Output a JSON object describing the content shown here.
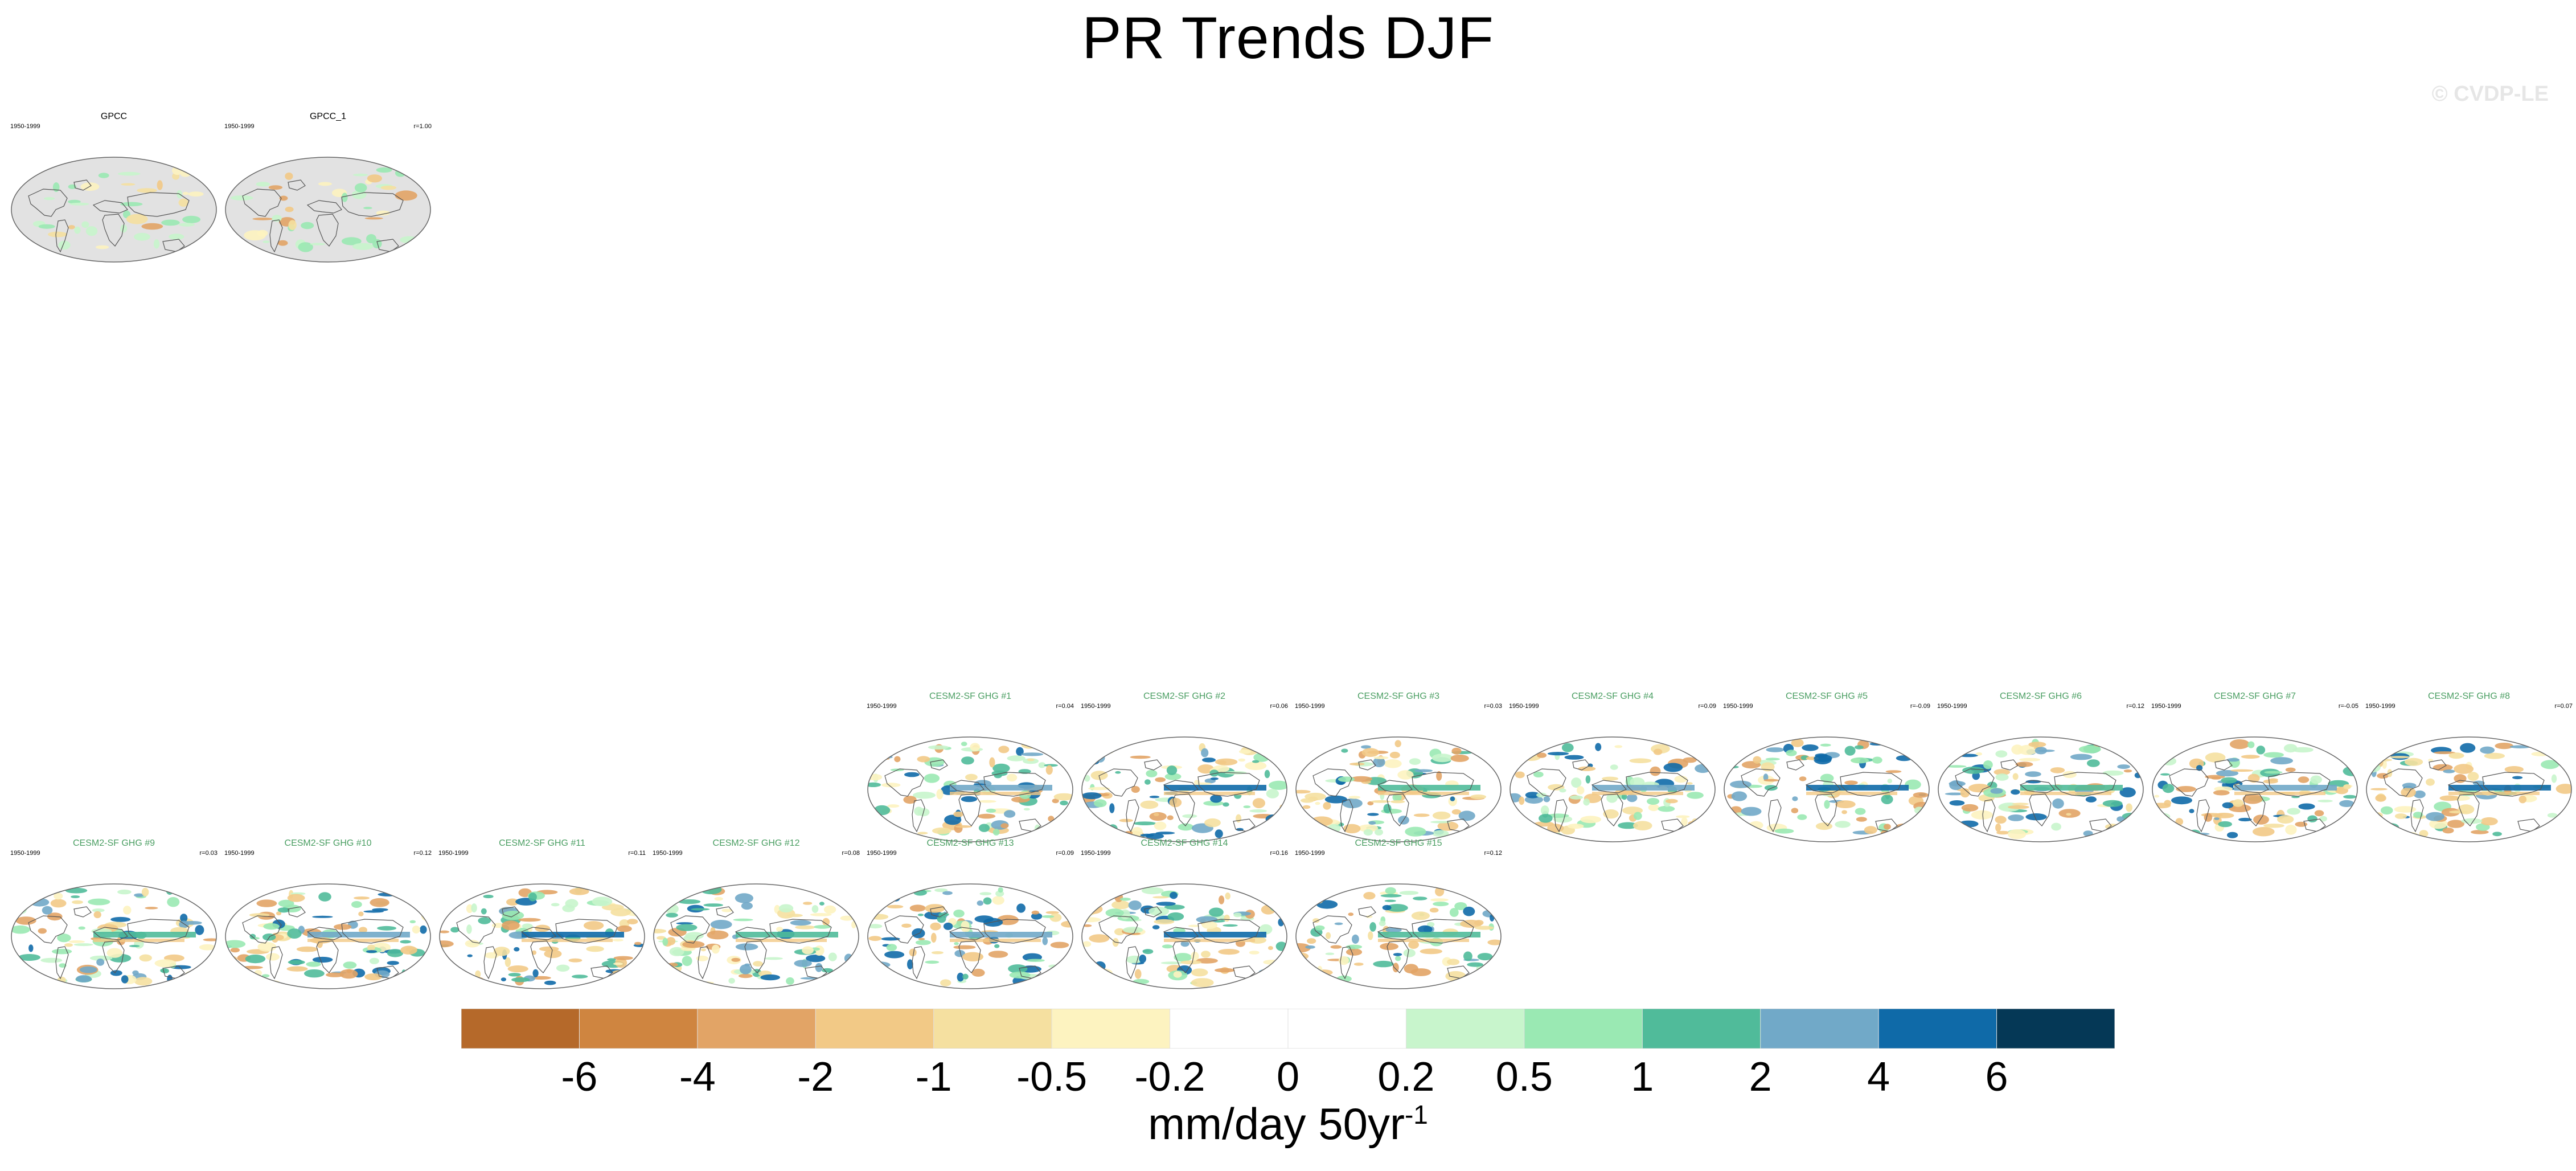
{
  "title": "PR Trends DJF",
  "watermark": "© CVDP-LE",
  "units": {
    "base": "mm/day 50yr",
    "exponent": "-1"
  },
  "observations": [
    {
      "name": "GPCC",
      "period": "1950-1999",
      "r": ""
    },
    {
      "name": "GPCC_1",
      "period": "1950-1999",
      "r": "r=1.00"
    }
  ],
  "ensemble_members": [
    {
      "name": "CESM2-SF GHG #1",
      "period": "1950-1999",
      "r": "r=0.04"
    },
    {
      "name": "CESM2-SF GHG #2",
      "period": "1950-1999",
      "r": "r=0.06"
    },
    {
      "name": "CESM2-SF GHG #3",
      "period": "1950-1999",
      "r": "r=0.03"
    },
    {
      "name": "CESM2-SF GHG #4",
      "period": "1950-1999",
      "r": "r=0.09"
    },
    {
      "name": "CESM2-SF GHG #5",
      "period": "1950-1999",
      "r": "r=-0.09"
    },
    {
      "name": "CESM2-SF GHG #6",
      "period": "1950-1999",
      "r": "r=0.12"
    },
    {
      "name": "CESM2-SF GHG #7",
      "period": "1950-1999",
      "r": "r=-0.05"
    },
    {
      "name": "CESM2-SF GHG #8",
      "period": "1950-1999",
      "r": "r=0.07"
    },
    {
      "name": "CESM2-SF GHG #9",
      "period": "1950-1999",
      "r": "r=0.03"
    },
    {
      "name": "CESM2-SF GHG #10",
      "period": "1950-1999",
      "r": "r=0.12"
    },
    {
      "name": "CESM2-SF GHG #11",
      "period": "1950-1999",
      "r": "r=0.11"
    },
    {
      "name": "CESM2-SF GHG #12",
      "period": "1950-1999",
      "r": "r=0.08"
    },
    {
      "name": "CESM2-SF GHG #13",
      "period": "1950-1999",
      "r": "r=0.09"
    },
    {
      "name": "CESM2-SF GHG #14",
      "period": "1950-1999",
      "r": "r=0.16"
    },
    {
      "name": "CESM2-SF GHG #15",
      "period": "1950-1999",
      "r": "r=0.12"
    }
  ],
  "chart_data": {
    "type": "heatmap",
    "title": "PR Trends DJF",
    "variable": "PR",
    "season": "DJF",
    "colorbar": {
      "label": "mm/day 50yr-1",
      "levels": [
        "-6",
        "-4",
        "-2",
        "-1",
        "-0.5",
        "-0.2",
        "0",
        "0.2",
        "0.5",
        "1",
        "2",
        "4",
        "6"
      ],
      "colors": [
        "#b5692a",
        "#cf8540",
        "#e2a466",
        "#f2c986",
        "#f5e0a0",
        "#fdf3c0",
        "#ffffff",
        "#ffffff",
        "#c8f5cc",
        "#9ae9b3",
        "#50bb9a",
        "#71a9c8",
        "#0f6aa8",
        "#053856"
      ]
    }
  }
}
